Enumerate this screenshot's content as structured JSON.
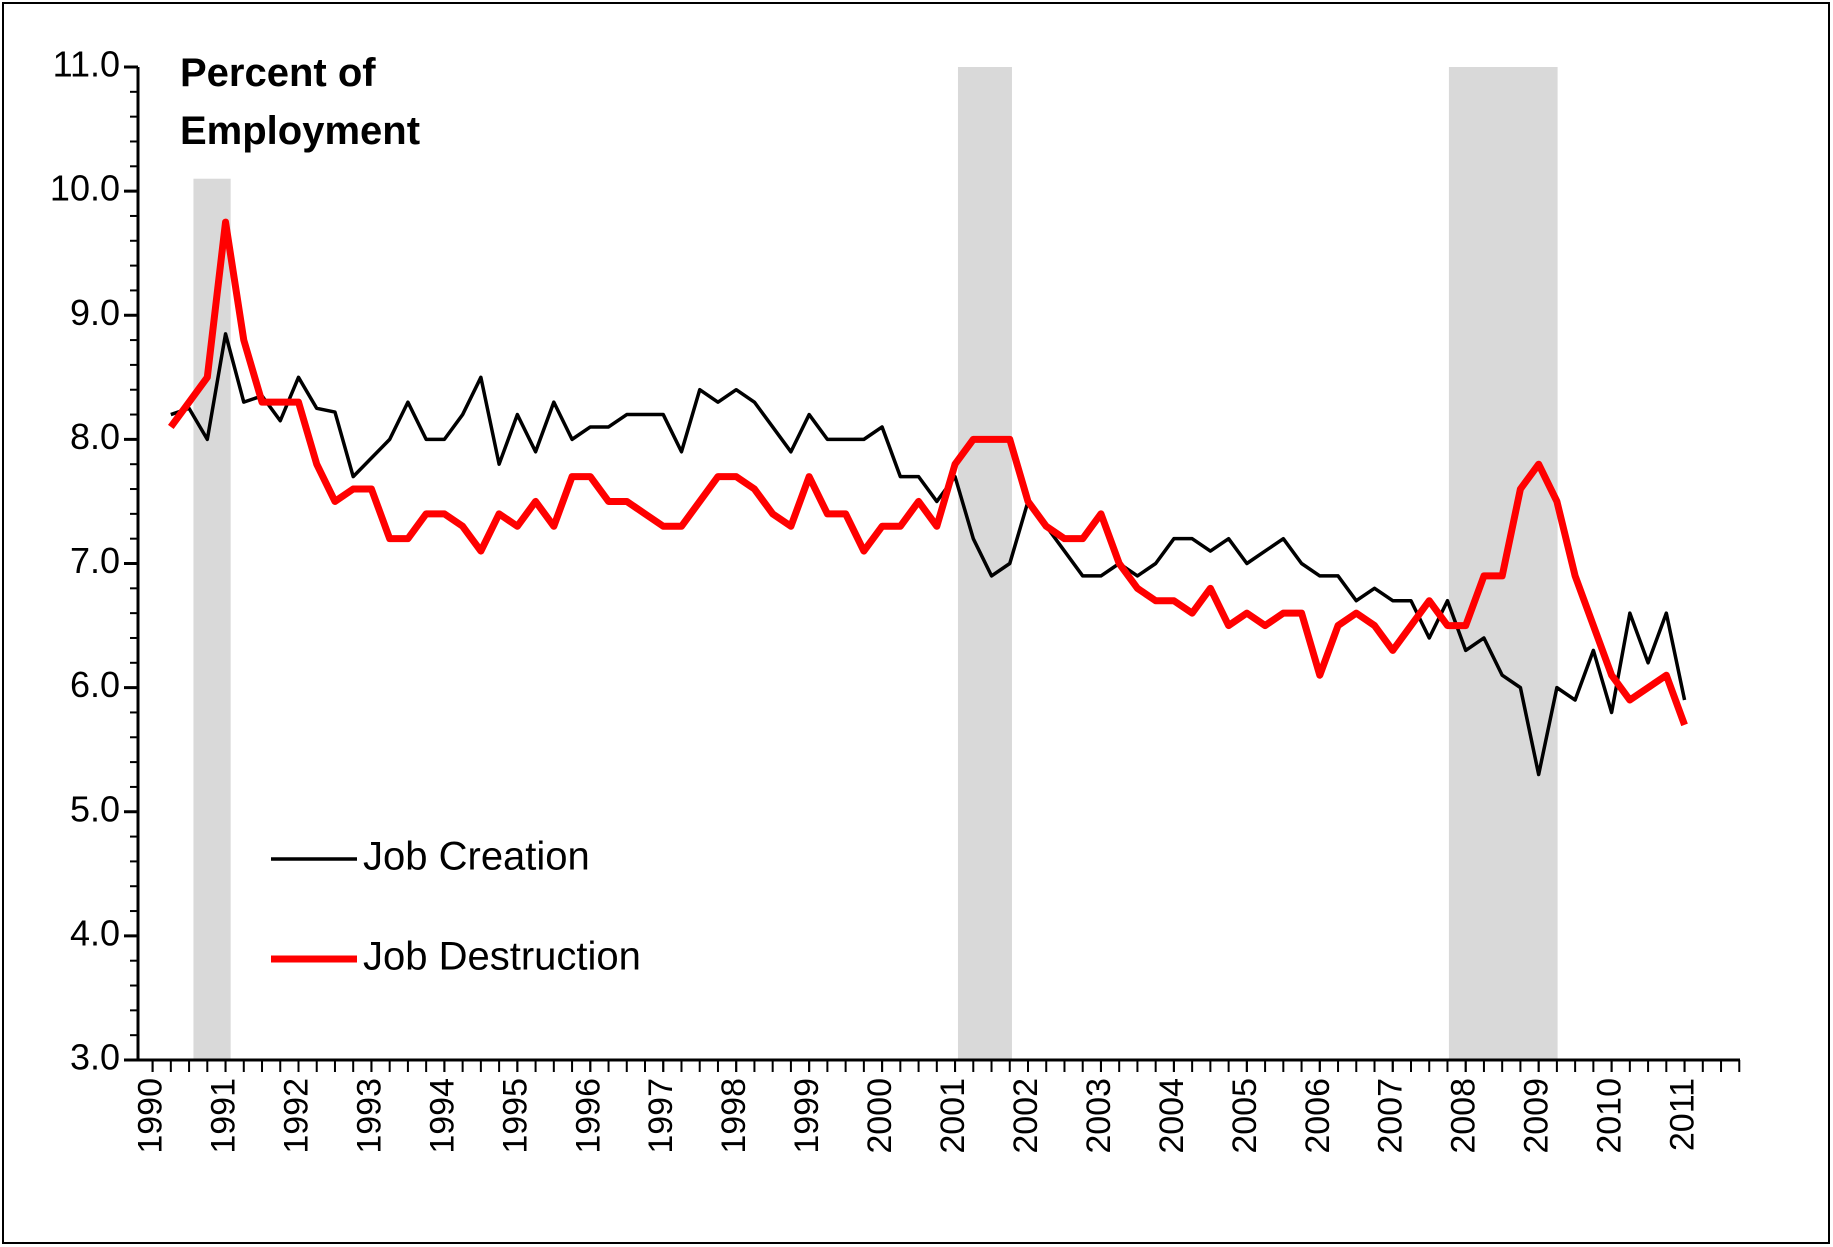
{
  "chart_data": {
    "type": "line",
    "title": "Percent of Employment",
    "x": [
      1990.25,
      1990.5,
      1990.75,
      1991,
      1991.25,
      1991.5,
      1991.75,
      1992,
      1992.25,
      1992.5,
      1992.75,
      1993,
      1993.25,
      1993.5,
      1993.75,
      1994,
      1994.25,
      1994.5,
      1994.75,
      1995,
      1995.25,
      1995.5,
      1995.75,
      1996,
      1996.25,
      1996.5,
      1996.75,
      1997,
      1997.25,
      1997.5,
      1997.75,
      1998,
      1998.25,
      1998.5,
      1998.75,
      1999,
      1999.25,
      1999.5,
      1999.75,
      2000,
      2000.25,
      2000.5,
      2000.75,
      2001,
      2001.25,
      2001.5,
      2001.75,
      2002,
      2002.25,
      2002.5,
      2002.75,
      2003,
      2003.25,
      2003.5,
      2003.75,
      2004,
      2004.25,
      2004.5,
      2004.75,
      2005,
      2005.25,
      2005.5,
      2005.75,
      2006,
      2006.25,
      2006.5,
      2006.75,
      2007,
      2007.25,
      2007.5,
      2007.75,
      2008,
      2008.25,
      2008.5,
      2008.75,
      2009,
      2009.25,
      2009.5,
      2009.75,
      2010,
      2010.25,
      2010.5,
      2010.75,
      2011
    ],
    "series": [
      {
        "name": "Job Creation",
        "color": "#000000",
        "values": [
          8.2,
          8.25,
          8.0,
          8.85,
          8.3,
          8.35,
          8.15,
          8.5,
          8.25,
          8.22,
          7.7,
          7.85,
          8.0,
          8.3,
          8.0,
          8.0,
          8.2,
          8.5,
          7.8,
          8.2,
          7.9,
          8.3,
          8.0,
          8.1,
          8.1,
          8.2,
          8.2,
          8.2,
          7.9,
          8.4,
          8.3,
          8.4,
          8.3,
          8.1,
          7.9,
          8.2,
          8.0,
          8.0,
          8.0,
          8.1,
          7.7,
          7.7,
          7.5,
          7.7,
          7.2,
          6.9,
          7.0,
          7.5,
          7.3,
          7.1,
          6.9,
          6.9,
          7.0,
          6.9,
          7.0,
          7.2,
          7.2,
          7.1,
          7.2,
          7.0,
          7.1,
          7.2,
          7.0,
          6.9,
          6.9,
          6.7,
          6.8,
          6.7,
          6.7,
          6.4,
          6.7,
          6.3,
          6.4,
          6.1,
          6.0,
          5.3,
          6.0,
          5.9,
          6.3,
          5.8,
          6.6,
          6.2,
          6.6,
          5.9
        ]
      },
      {
        "name": "Job Destruction",
        "color": "#ff0000",
        "values": [
          8.1,
          8.3,
          8.5,
          9.75,
          8.8,
          8.3,
          8.3,
          8.3,
          7.8,
          7.5,
          7.6,
          7.6,
          7.2,
          7.2,
          7.4,
          7.4,
          7.3,
          7.1,
          7.4,
          7.3,
          7.5,
          7.3,
          7.7,
          7.7,
          7.5,
          7.5,
          7.4,
          7.3,
          7.3,
          7.5,
          7.7,
          7.7,
          7.6,
          7.4,
          7.3,
          7.7,
          7.4,
          7.4,
          7.1,
          7.3,
          7.3,
          7.5,
          7.3,
          7.8,
          8.0,
          8.0,
          8.0,
          7.5,
          7.3,
          7.2,
          7.2,
          7.4,
          7.0,
          6.8,
          6.7,
          6.7,
          6.6,
          6.8,
          6.5,
          6.6,
          6.5,
          6.6,
          6.6,
          6.1,
          6.5,
          6.6,
          6.5,
          6.3,
          6.5,
          6.7,
          6.5,
          6.5,
          6.9,
          6.9,
          7.6,
          7.8,
          7.5,
          6.9,
          6.5,
          6.1,
          5.9,
          6.0,
          6.1,
          5.7
        ]
      }
    ],
    "shading": {
      "color": "#d9d9d9",
      "bands": [
        {
          "start": 1990.56,
          "end": 1991.07,
          "top": 10.1
        },
        {
          "start": 2001.04,
          "end": 2001.78,
          "top": 11
        },
        {
          "start": 2007.77,
          "end": 2009.26,
          "top": 11
        }
      ]
    },
    "xlim": [
      1989.8,
      2011.76
    ],
    "xticks": [
      1990,
      1991,
      1992,
      1993,
      1994,
      1995,
      1996,
      1997,
      1998,
      1999,
      2000,
      2001,
      2002,
      2003,
      2004,
      2005,
      2006,
      2007,
      2008,
      2009,
      2010,
      2011
    ],
    "ylim": [
      3,
      11
    ],
    "yticks": [
      {
        "value": 3,
        "label": "3.0"
      },
      {
        "value": 4,
        "label": "4.0"
      },
      {
        "value": 5,
        "label": "5.0"
      },
      {
        "value": 6,
        "label": "6.0"
      },
      {
        "value": 7,
        "label": "7.0"
      },
      {
        "value": 8,
        "label": "8.0"
      },
      {
        "value": 9,
        "label": "9.0"
      },
      {
        "value": 10,
        "label": "10.0"
      },
      {
        "value": 11,
        "label": "11.0"
      }
    ],
    "grid": false,
    "legend": "lower left"
  }
}
